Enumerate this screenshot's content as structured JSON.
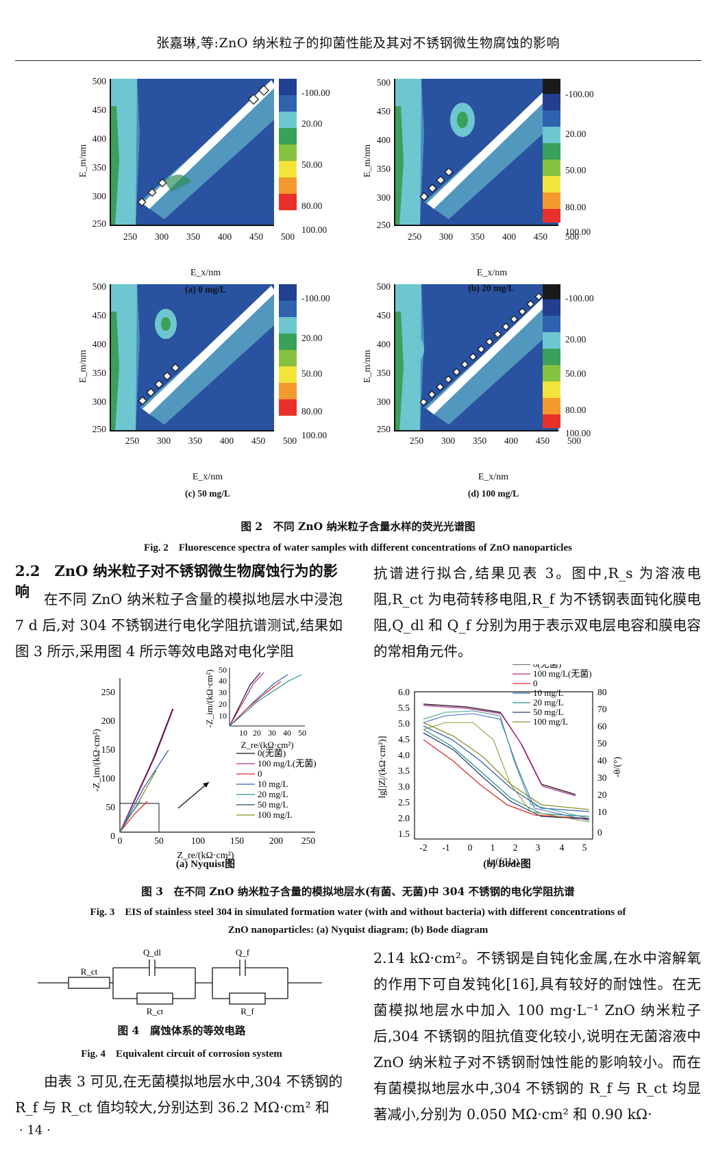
{
  "header": {
    "title": "张嘉琳,等:ZnO 纳米粒子的抑菌性能及其对不锈钢微生物腐蚀的影响"
  },
  "fig2": {
    "caption_cn": "图 2　不同 ZnO 纳米粒子含量水样的荧光光谱图",
    "caption_en": "Fig. 2　Fluorescence spectra of water samples with different concentrations of ZnO nanoparticles",
    "panels": [
      {
        "label": "(a) 0 mg/L"
      },
      {
        "label": "(b) 20 mg/L"
      },
      {
        "label": "(c) 50 mg/L"
      },
      {
        "label": "(d) 100 mg/L"
      }
    ],
    "xlabel": "E_x/nm",
    "ylabel": "E_m/nm",
    "xticks": [
      "250",
      "300",
      "350",
      "400",
      "450",
      "500"
    ],
    "yticks": [
      "500",
      "450",
      "400",
      "350",
      "300",
      "250"
    ],
    "colorbar_labels": [
      "-100.00",
      "20.00",
      "50.00",
      "80.00",
      "100.00"
    ],
    "colors": [
      "#1a1a1a",
      "#233f8f",
      "#2f63b0",
      "#6ec6d0",
      "#3aa05a",
      "#86c240",
      "#f3e43a",
      "#f29a2e",
      "#e8302a"
    ]
  },
  "section": {
    "heading": "2.2　ZnO 纳米粒子对不锈钢微生物腐蚀行为的影响",
    "left_col": "在不同 ZnO 纳米粒子含量的模拟地层水中浸泡 7 d 后,对 304 不锈钢进行电化学阻抗谱测试,结果如图 3 所示,采用图 4 所示等效电路对电化学阻",
    "right_col": "抗谱进行拟合,结果见表 3。图中,R_s 为溶液电阻,R_ct 为电荷转移电阻,R_f 为不锈钢表面钝化膜电阻,Q_dl 和 Q_f 分别为用于表示双电层电容和膜电容的常相角元件。"
  },
  "fig3": {
    "caption_cn": "图 3　在不同 ZnO 纳米粒子含量的模拟地层水(有菌、无菌)中 304 不锈钢的电化学阻抗谱",
    "caption_en_1": "Fig. 3　EIS of stainless steel 304 in simulated formation water (with and without bacteria) with different concentrations of",
    "caption_en_2": "ZnO nanoparticles: (a) Nyquist diagram; (b) Bode diagram",
    "sub_a": "(a) Nyquist图",
    "sub_b": "(b) Bode图",
    "legend": [
      "0(无菌)",
      "100 mg/L(无菌)",
      "0",
      "10 mg/L",
      "20 mg/L",
      "50 mg/L",
      "100 mg/L"
    ],
    "series_colors": [
      "#111111",
      "#b0288f",
      "#e0282a",
      "#2e5fb0",
      "#2d8f8f",
      "#27406e",
      "#8a8f22"
    ],
    "nyquist": {
      "xlabel": "Z_re/(kΩ·cm²)",
      "ylabel": "-Z_im/(kΩ·cm²)",
      "xticks": [
        "0",
        "50",
        "100",
        "150",
        "200",
        "250"
      ],
      "yticks": [
        "250",
        "200",
        "150",
        "100",
        "50",
        "0"
      ],
      "inset_ticks": [
        "10",
        "20",
        "30",
        "40",
        "50"
      ]
    },
    "bode": {
      "xlabel": "lg(f/Hz)",
      "ylabel": "lg[|Z|/(kΩ·cm²)]",
      "y2label": "-θ/(°)",
      "xticks": [
        "-2",
        "-1",
        "0",
        "1",
        "2",
        "3",
        "4",
        "5"
      ],
      "yticks": [
        "6.0",
        "5.5",
        "5.0",
        "4.5",
        "4.0",
        "3.5",
        "3.0",
        "2.5",
        "2.0",
        "1.5"
      ],
      "y2ticks": [
        "80",
        "70",
        "60",
        "50",
        "40",
        "30",
        "20",
        "10",
        "0"
      ]
    }
  },
  "fig4": {
    "caption_cn": "图 4　腐蚀体系的等效电路",
    "caption_en": "Fig. 4　Equivalent circuit of corrosion system",
    "labels": {
      "r1": "R_ct",
      "q1": "Q_dl",
      "r2": "R_ct",
      "q2": "Q_f",
      "r3": "R_f"
    }
  },
  "bottom": {
    "left": "由表 3 可见,在无菌模拟地层水中,304 不锈钢的 R_f 与 R_ct 值均较大,分别达到 36.2 MΩ·cm² 和",
    "right": "2.14 kΩ·cm²。不锈钢是自钝化金属,在水中溶解氧的作用下可自发钝化[16],具有较好的耐蚀性。在无菌模拟地层水中加入 100 mg·L⁻¹ ZnO 纳米粒子后,304 不锈钢的阻抗值变化较小,说明在无菌溶液中 ZnO 纳米粒子对不锈钢耐蚀性能的影响较小。而在有菌模拟地层水中,304 不锈钢的 R_f 与 R_ct 均显著减小,分别为 0.050 MΩ·cm² 和 0.90 kΩ·"
  },
  "page_number": "· 14 ·"
}
